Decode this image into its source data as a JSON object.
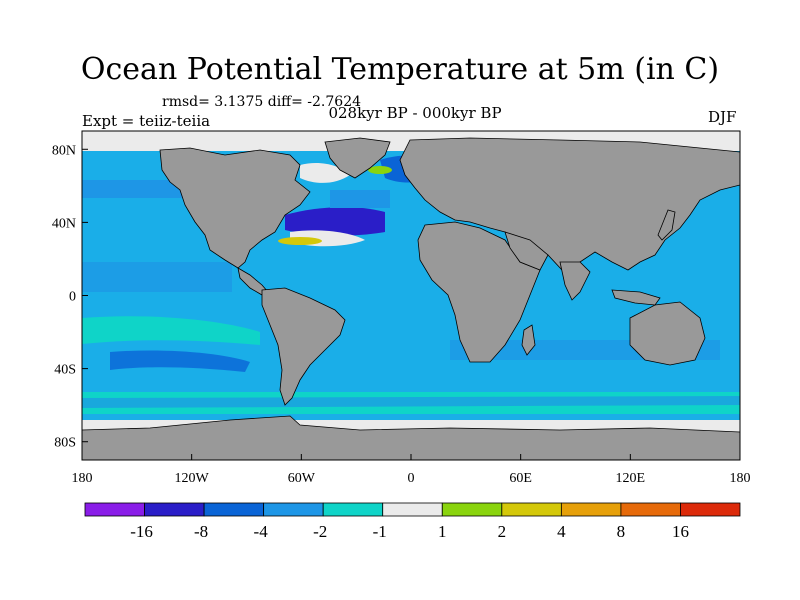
{
  "title": "Ocean Potential Temperature at 5m (in C)",
  "stats": "rmsd= 3.1375 diff= -2.7624",
  "expt": "Expt = teiiz-teiia",
  "period": "028kyr BP - 000kyr BP",
  "season": "DJF",
  "axes": {
    "lon_ticks": [
      "180",
      "120W",
      "60W",
      "0",
      "60E",
      "120E",
      "180"
    ],
    "lat_ticks": [
      "80N",
      "40N",
      "0",
      "40S",
      "80S"
    ]
  },
  "colors": {
    "land": "#999999",
    "ocean_main": "#1aaee8",
    "coast": "#000000"
  },
  "colorbar": {
    "labels": [
      "-16",
      "-8",
      "-4",
      "-2",
      "-1",
      "1",
      "2",
      "4",
      "8",
      "16"
    ],
    "colors": [
      "#8a1de8",
      "#2a1ec8",
      "#0a64d6",
      "#1e96e6",
      "#0fd4c8",
      "#ebebeb",
      "#8ad40e",
      "#d4c80a",
      "#e6a00a",
      "#e66a0a",
      "#dc2a0a"
    ]
  }
}
